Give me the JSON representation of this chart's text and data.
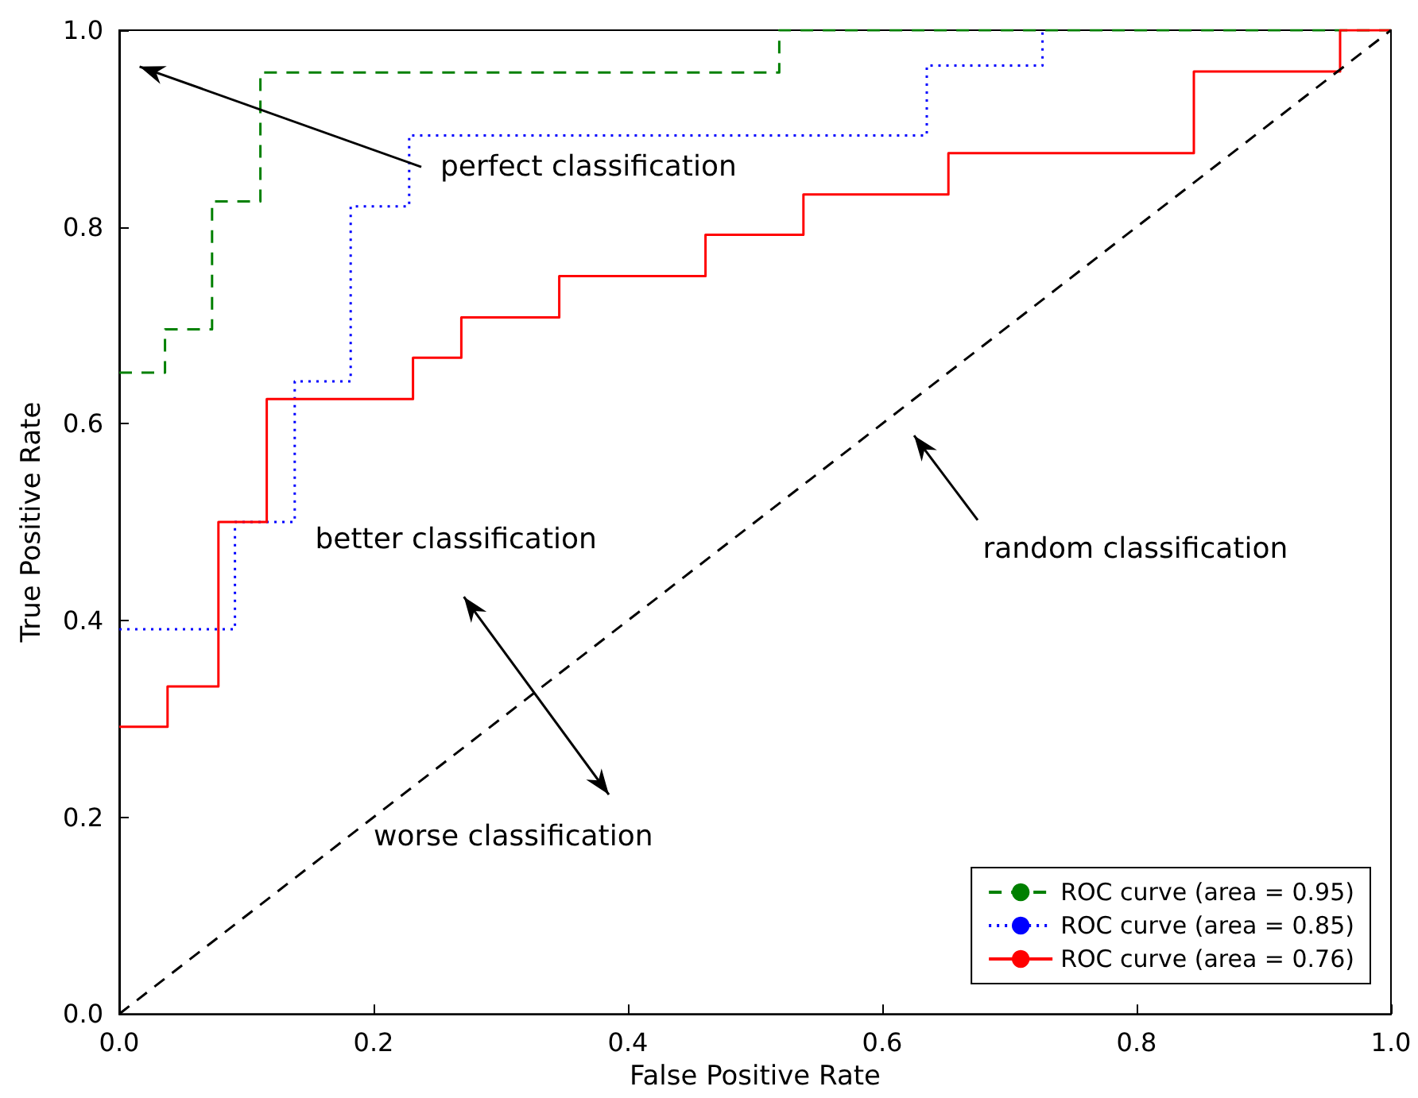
{
  "chart_data": {
    "type": "step",
    "xlabel": "False Positive Rate",
    "ylabel": "True Positive Rate",
    "xlim": [
      0,
      1
    ],
    "ylim": [
      0,
      1
    ],
    "xticks": [
      {
        "value": 0,
        "label": "0.0"
      },
      {
        "value": 0.2,
        "label": "0.2"
      },
      {
        "value": 0.4,
        "label": "0.4"
      },
      {
        "value": 0.6,
        "label": "0.6"
      },
      {
        "value": 0.8,
        "label": "0.8"
      },
      {
        "value": 1,
        "label": "1.0"
      }
    ],
    "yticks": [
      {
        "value": 0,
        "label": "0.0"
      },
      {
        "value": 0.2,
        "label": "0.2"
      },
      {
        "value": 0.4,
        "label": "0.4"
      },
      {
        "value": 0.6,
        "label": "0.6"
      },
      {
        "value": 0.8,
        "label": "0.8"
      },
      {
        "value": 1,
        "label": "1.0"
      }
    ],
    "grid": false,
    "legend": "bottom right",
    "marker": "none",
    "annotations": [
      "perfect classification",
      "better classification",
      "random classification",
      "worse classification"
    ],
    "series": [
      {
        "name": "ROC curve (area = 0.95)",
        "color": "#008000",
        "line_style": "dashed",
        "x": [
          0,
          0.036,
          0.073,
          0.111,
          0.519,
          1
        ],
        "values": [
          0.652,
          0.696,
          0.826,
          0.957,
          1,
          1
        ]
      },
      {
        "name": "ROC curve (area = 0.85)",
        "color": "#0000ff",
        "line_style": "dotted",
        "x": [
          0,
          0.091,
          0.138,
          0.182,
          0.228,
          0.635,
          0.726
        ],
        "values": [
          0.391,
          0.5,
          0.643,
          0.821,
          0.893,
          0.964,
          1
        ]
      },
      {
        "name": "ROC curve (area = 0.76)",
        "color": "#ff0000",
        "line_style": "solid",
        "x": [
          0,
          0.038,
          0.078,
          0.116,
          0.231,
          0.269,
          0.346,
          0.461,
          0.538,
          0.652,
          0.845,
          0.96,
          1
        ],
        "values": [
          0.292,
          0.333,
          0.5,
          0.625,
          0.667,
          0.708,
          0.75,
          0.792,
          0.833,
          0.875,
          0.958,
          1,
          1
        ]
      },
      {
        "type": "line",
        "color": "#000000",
        "line_style": "dashed",
        "x": [
          0,
          1
        ],
        "values": [
          0,
          1
        ]
      }
    ]
  }
}
